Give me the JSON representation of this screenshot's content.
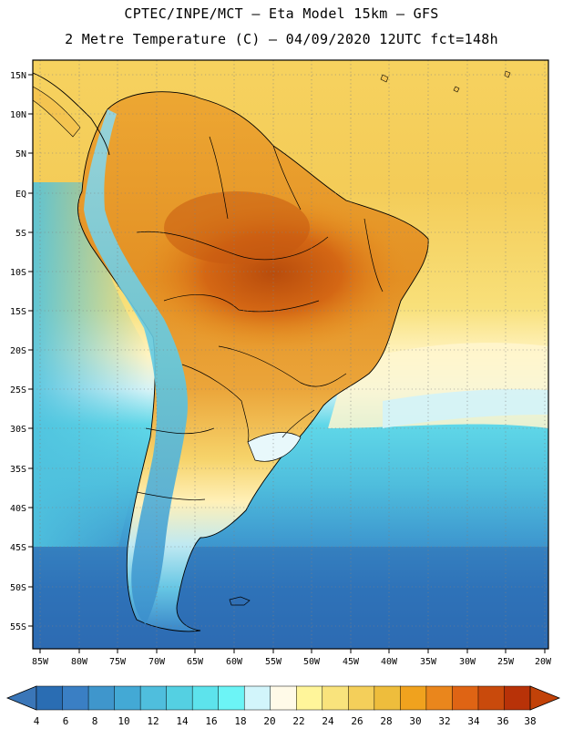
{
  "header": {
    "line1": "CPTEC/INPE/MCT –  Eta Model 15km – GFS",
    "line2": "2 Metre Temperature (C) – 04/09/2020 12UTC fct=148h"
  },
  "axes": {
    "lat_labels": [
      "15N",
      "10N",
      "5N",
      "EQ",
      "5S",
      "10S",
      "15S",
      "20S",
      "25S",
      "30S",
      "35S",
      "40S",
      "45S",
      "50S",
      "55S"
    ],
    "lon_labels": [
      "85W",
      "80W",
      "75W",
      "70W",
      "65W",
      "60W",
      "55W",
      "50W",
      "45W",
      "40W",
      "35W",
      "30W",
      "25W",
      "20W"
    ]
  },
  "colorbar": {
    "labels": [
      "4",
      "6",
      "8",
      "10",
      "12",
      "14",
      "16",
      "18",
      "20",
      "22",
      "24",
      "26",
      "28",
      "30",
      "32",
      "34",
      "36",
      "38"
    ],
    "colors": [
      "#2a6db3",
      "#3a7fc4",
      "#3f96cc",
      "#43a9d5",
      "#4fbedd",
      "#54d0e2",
      "#5de3ec",
      "#6cf4f6",
      "#d2f5fb",
      "#fffae8",
      "#fff59a",
      "#f9e37c",
      "#f4cf5a",
      "#eebd3c",
      "#f0a21e",
      "#ea861c",
      "#df6414",
      "#c94a0c",
      "#b83208"
    ],
    "low_color": "#3a76b8",
    "high_color": "#c24208"
  },
  "map": {
    "ocean_regions": [
      {
        "temp": "warm-north",
        "color": "#f4cf5a"
      },
      {
        "temp": "pale-east",
        "color": "#fff5c8"
      },
      {
        "temp": "mid-south",
        "color": "#4fbedd"
      },
      {
        "temp": "cold-far-south",
        "color": "#2a6db3"
      }
    ],
    "land_colors": {
      "hot_core": "#c2570f",
      "warm": "#ea9a26",
      "mild": "#f4c450",
      "cool_andes": "#6fd0e6",
      "cold_patagonia": "#3a86c8"
    }
  }
}
